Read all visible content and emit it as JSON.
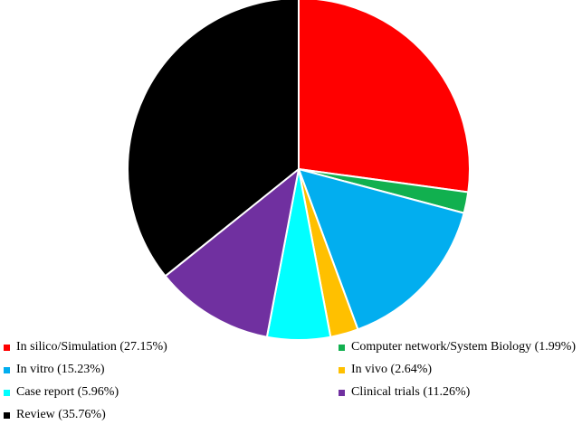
{
  "chart_data": {
    "type": "pie",
    "start_angle_deg": 0,
    "direction": "clockwise",
    "slice_border_color": "#ffffff",
    "legend_position": "bottom",
    "slices": [
      {
        "label": "In silico/Simulation (27.15%)",
        "value": 27.15,
        "color": "#ff0000"
      },
      {
        "label": "Computer network/System Biology (1.99%)",
        "value": 1.99,
        "color": "#11b04f"
      },
      {
        "label": "In vitro (15.23%)",
        "value": 15.23,
        "color": "#02aeef"
      },
      {
        "label": "In vivo (2.64%)",
        "value": 2.64,
        "color": "#ffc000"
      },
      {
        "label": "Case report (5.96%)",
        "value": 5.96,
        "color": "#01ffff"
      },
      {
        "label": "Clinical trials (11.26%)",
        "value": 11.26,
        "color": "#7030a0"
      },
      {
        "label": "Review (35.76%)",
        "value": 35.76,
        "color": "#000000"
      }
    ]
  }
}
